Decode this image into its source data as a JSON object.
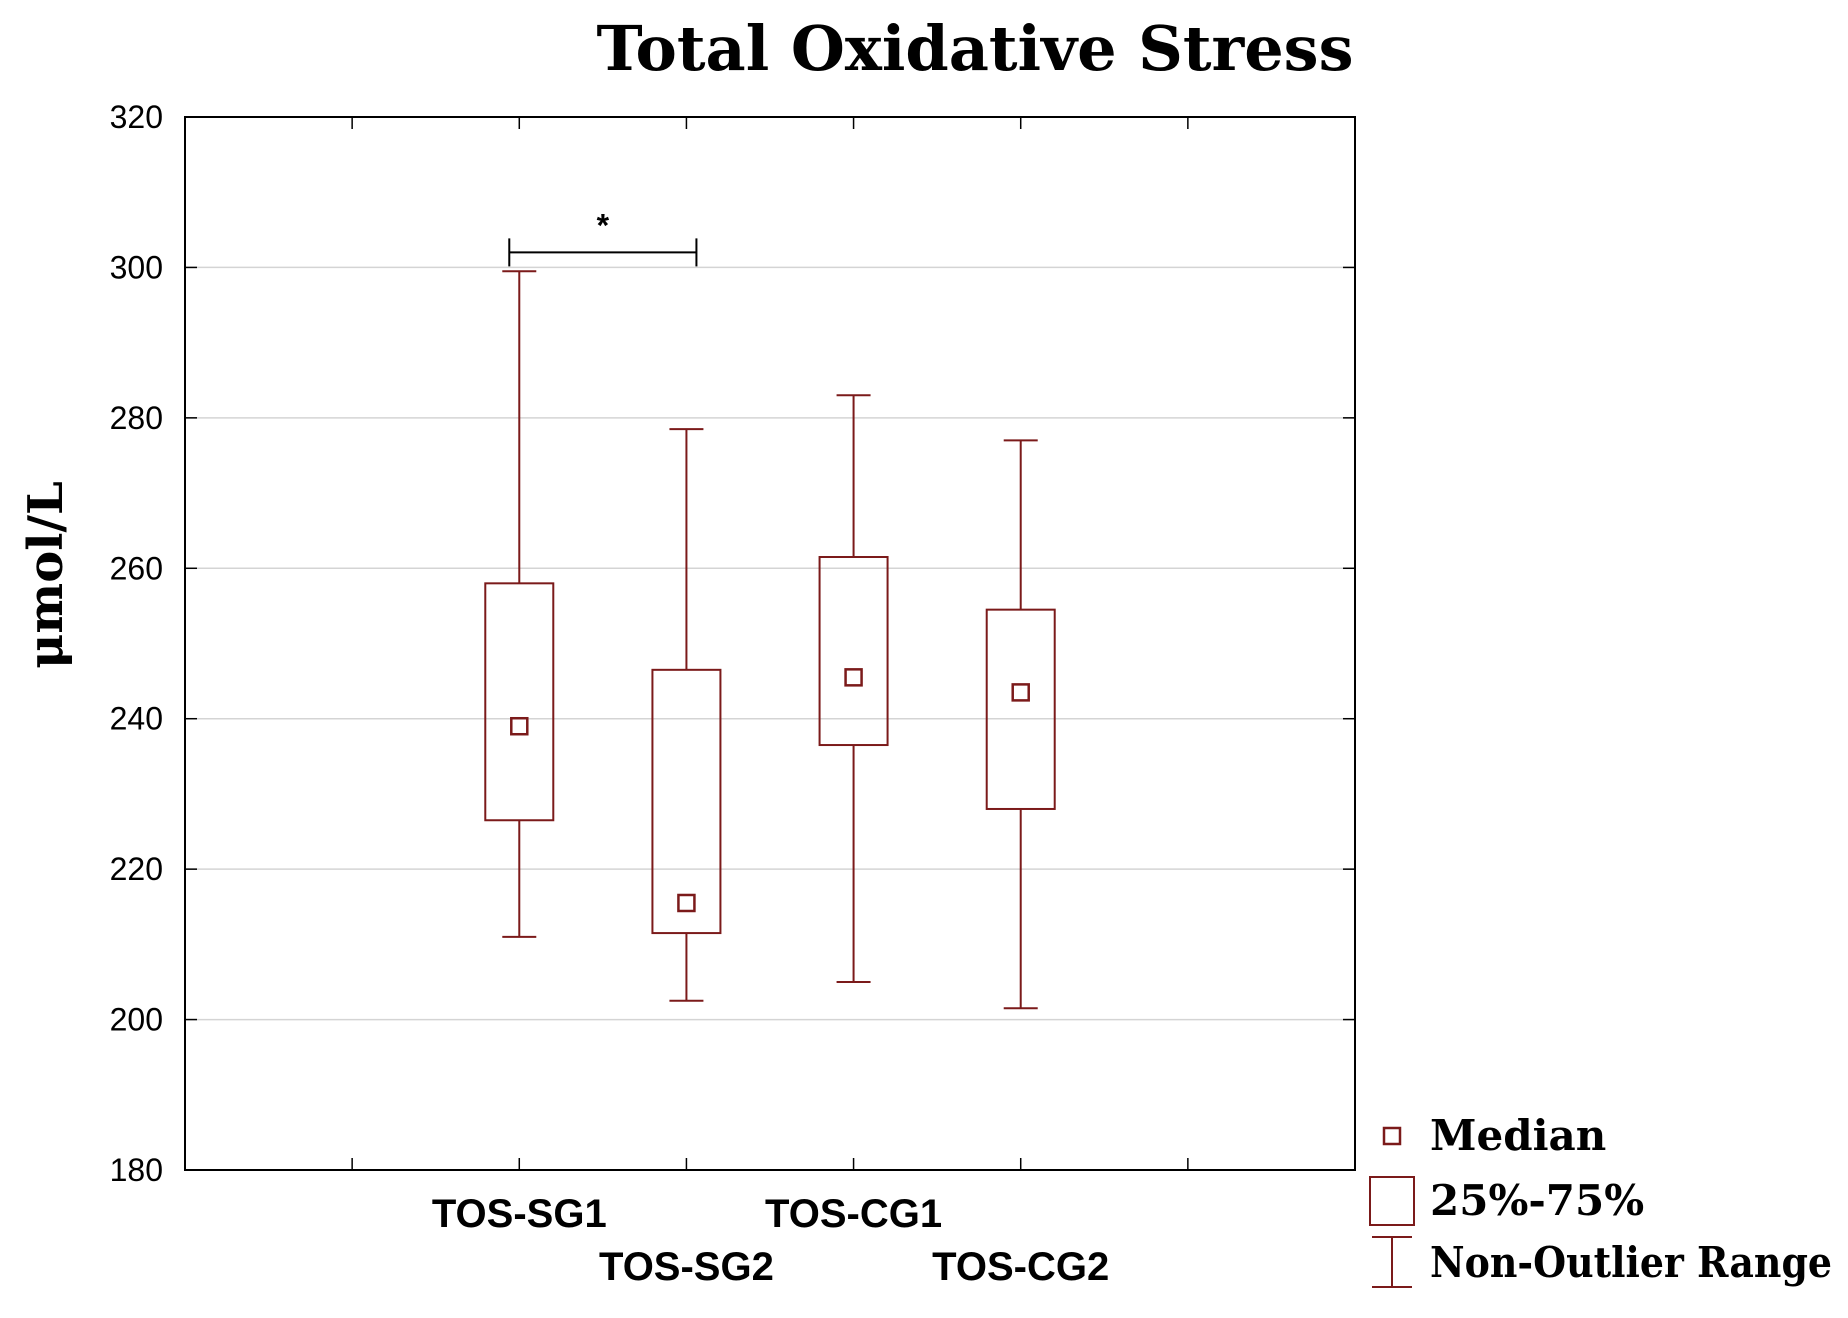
{
  "chart_data": {
    "type": "box",
    "title": "Total Oxidative Stress",
    "xlabel": "",
    "ylabel": "μmol/L",
    "ylim": [
      180,
      320
    ],
    "yticks": [
      180,
      200,
      220,
      240,
      260,
      280,
      300,
      320
    ],
    "grid": true,
    "categories": [
      "TOS-SG1",
      "TOS-SG2",
      "TOS-CG1",
      "TOS-CG2"
    ],
    "boxes": [
      {
        "name": "TOS-SG1",
        "min": 211,
        "q1": 226.5,
        "median": 239,
        "q3": 258,
        "max": 299.5
      },
      {
        "name": "TOS-SG2",
        "min": 202.5,
        "q1": 211.5,
        "median": 215.5,
        "q3": 246.5,
        "max": 278.5
      },
      {
        "name": "TOS-CG1",
        "min": 205,
        "q1": 236.5,
        "median": 245.5,
        "q3": 261.5,
        "max": 283
      },
      {
        "name": "TOS-CG2",
        "min": 201.5,
        "q1": 228,
        "median": 243.5,
        "q3": 254.5,
        "max": 277
      }
    ],
    "significance": [
      {
        "from": "TOS-SG1",
        "to": "TOS-SG2",
        "label": "*",
        "y": 302
      }
    ],
    "legend": {
      "position": "bottom-right",
      "entries": [
        "Median",
        "25%-75%",
        "Non-Outlier Range"
      ]
    },
    "colors": {
      "box": "#7b1a1a",
      "grid": "#d4d4d4",
      "axis": "#000000"
    }
  }
}
